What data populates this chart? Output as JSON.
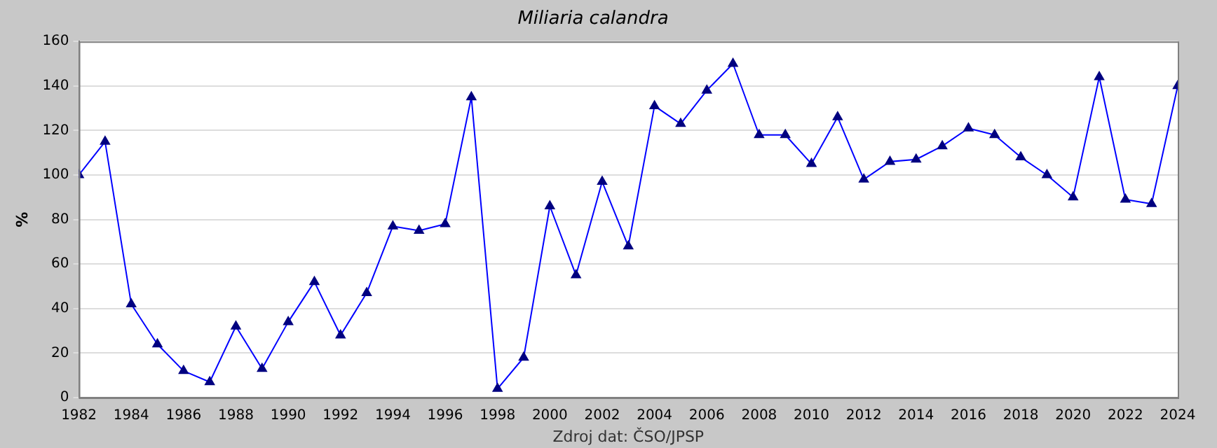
{
  "chart_data": {
    "type": "line",
    "title": "Miliaria calandra",
    "ylabel": "%",
    "annotations": [
      "Zdroj dat: ČSO/JPSP"
    ],
    "x": [
      1982,
      1983,
      1984,
      1985,
      1986,
      1987,
      1988,
      1989,
      1990,
      1991,
      1992,
      1993,
      1994,
      1995,
      1996,
      1997,
      1998,
      1999,
      2000,
      2001,
      2002,
      2003,
      2004,
      2005,
      2006,
      2007,
      2008,
      2009,
      2010,
      2011,
      2012,
      2013,
      2014,
      2015,
      2016,
      2017,
      2018,
      2019,
      2020,
      2021,
      2022,
      2023,
      2024
    ],
    "series": [
      {
        "color": "#0000ff",
        "values": [
          100,
          115,
          42,
          24,
          12,
          7,
          32,
          13,
          34,
          52,
          28,
          47,
          77,
          75,
          78,
          135,
          4,
          18,
          86,
          55,
          97,
          68,
          131,
          123,
          138,
          150,
          118,
          118,
          105,
          126,
          98,
          106,
          107,
          113,
          121,
          118,
          108,
          100,
          90,
          144,
          89,
          87,
          140
        ]
      }
    ],
    "xlim": [
      1982,
      2024
    ],
    "xticks": [
      1982,
      1984,
      1986,
      1988,
      1990,
      1992,
      1994,
      1996,
      1998,
      2000,
      2002,
      2004,
      2006,
      2008,
      2010,
      2012,
      2014,
      2016,
      2018,
      2020,
      2022,
      2024
    ],
    "ylim": [
      0,
      160
    ],
    "yticks": [
      0,
      20,
      40,
      60,
      80,
      100,
      120,
      140,
      160
    ],
    "grid": "y",
    "legend": false,
    "marker": "triangle",
    "line_style": "solid"
  }
}
